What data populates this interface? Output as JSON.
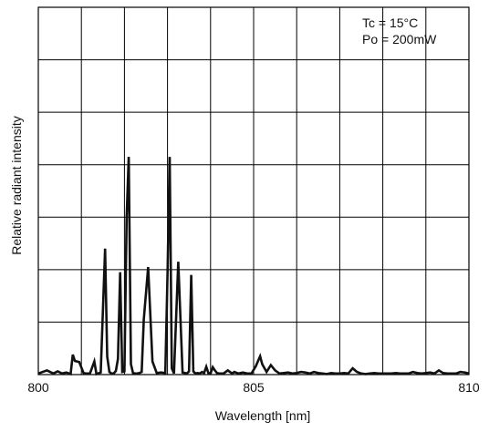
{
  "chart_data": {
    "type": "line",
    "title": "",
    "xlabel": "Wavelength [nm]",
    "ylabel": "Relative radiant intensity",
    "xlim": [
      800,
      810
    ],
    "ylim": [
      0,
      7
    ],
    "grid": true,
    "x_ticks": [
      800,
      805,
      810
    ],
    "x_tick_labels": [
      "800",
      "805",
      "810"
    ],
    "x_grid_step": 1,
    "y_grid_step": 1,
    "annotations": [
      "Tc = 15°C",
      "Po = 200mW"
    ],
    "annotation_position": "top-right",
    "series": [
      {
        "color": "#111111",
        "x": [
          800.0,
          800.2,
          800.35,
          800.45,
          800.55,
          800.65,
          800.75,
          800.8,
          800.85,
          800.95,
          801.05,
          801.1,
          801.2,
          801.3,
          801.35,
          801.45,
          801.55,
          801.6,
          801.65,
          801.7,
          801.75,
          801.8,
          801.85,
          801.9,
          801.95,
          802.0,
          802.05,
          802.1,
          802.15,
          802.2,
          802.25,
          802.3,
          802.35,
          802.4,
          802.45,
          802.55,
          802.65,
          802.75,
          802.85,
          802.95,
          803.0,
          803.05,
          803.1,
          803.15,
          803.25,
          803.35,
          803.45,
          803.5,
          803.55,
          803.6,
          803.65,
          803.7,
          803.75,
          803.8,
          803.85,
          803.9,
          803.95,
          804.0,
          804.05,
          804.1,
          804.15,
          804.2,
          804.3,
          804.4,
          804.5,
          804.55,
          804.65,
          804.75,
          804.85,
          804.95,
          805.05,
          805.15,
          805.2,
          805.3,
          805.4,
          805.5,
          805.6,
          805.7,
          805.8,
          805.9,
          806.0,
          806.1,
          806.2,
          806.3,
          806.4,
          806.5,
          806.6,
          806.7,
          806.8,
          806.9,
          807.0,
          807.1,
          807.2,
          807.3,
          807.4,
          807.5,
          807.6,
          807.7,
          807.8,
          807.9,
          808.0,
          808.1,
          808.2,
          808.3,
          808.4,
          808.5,
          808.6,
          808.7,
          808.8,
          808.9,
          809.0,
          809.1,
          809.2,
          809.3,
          809.4,
          809.5,
          809.6,
          809.7,
          809.8,
          809.9,
          810.0
        ],
        "y": [
          0.02,
          0.08,
          0.02,
          0.06,
          0.02,
          0.04,
          0.01,
          0.38,
          0.26,
          0.24,
          0.03,
          0.02,
          0.02,
          0.25,
          0.01,
          0.04,
          2.4,
          0.35,
          0.05,
          0.02,
          0.02,
          0.07,
          0.3,
          1.95,
          0.05,
          0.06,
          3.0,
          4.15,
          0.2,
          0.03,
          0.02,
          0.02,
          0.03,
          0.05,
          1.05,
          2.05,
          0.25,
          0.03,
          0.04,
          0.03,
          1.9,
          4.15,
          0.12,
          0.02,
          2.15,
          0.04,
          0.02,
          0.06,
          1.9,
          0.06,
          0.02,
          0.03,
          0.02,
          0.05,
          0.03,
          0.15,
          0.03,
          0.02,
          0.14,
          0.08,
          0.03,
          0.02,
          0.02,
          0.08,
          0.02,
          0.05,
          0.02,
          0.04,
          0.02,
          0.02,
          0.16,
          0.35,
          0.2,
          0.05,
          0.18,
          0.08,
          0.02,
          0.03,
          0.04,
          0.02,
          0.03,
          0.05,
          0.04,
          0.02,
          0.05,
          0.03,
          0.02,
          0.01,
          0.03,
          0.02,
          0.02,
          0.03,
          0.02,
          0.12,
          0.05,
          0.02,
          0.01,
          0.02,
          0.03,
          0.02,
          0.02,
          0.02,
          0.02,
          0.03,
          0.02,
          0.02,
          0.02,
          0.05,
          0.03,
          0.02,
          0.03,
          0.04,
          0.02,
          0.08,
          0.03,
          0.02,
          0.02,
          0.02,
          0.05,
          0.04,
          0.02
        ]
      }
    ]
  }
}
